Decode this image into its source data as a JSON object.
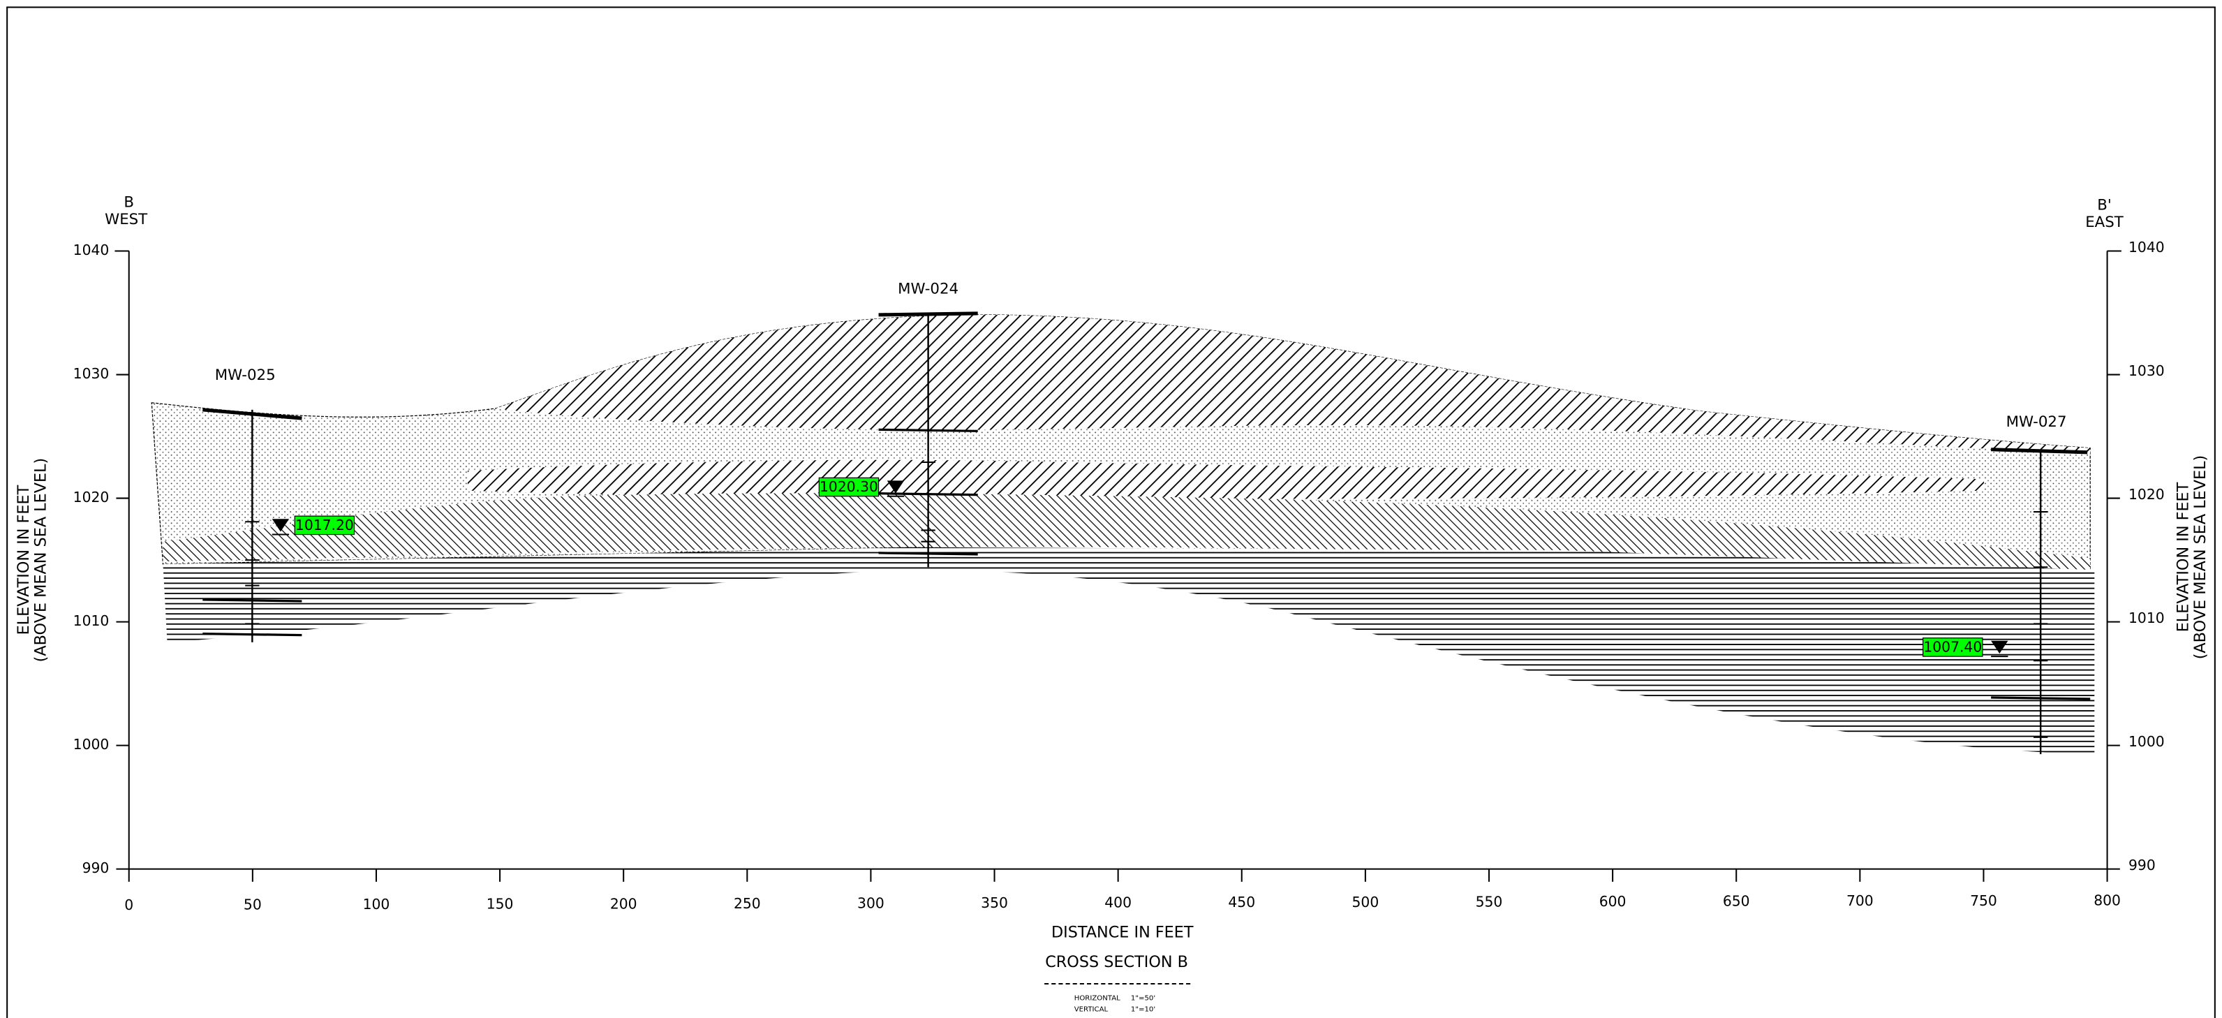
{
  "header": {
    "west": {
      "letter": "B",
      "direction": "WEST"
    },
    "east": {
      "letter": "B'",
      "direction": "EAST"
    }
  },
  "y_axis": {
    "title": "ELEVATION IN FEET",
    "subtitle": "(ABOVE MEAN SEA LEVEL)",
    "ticks": [
      "1040",
      "1030",
      "1020",
      "1010",
      "1000",
      "990"
    ]
  },
  "x_axis": {
    "title": "DISTANCE IN FEET",
    "ticks": [
      "0",
      "50",
      "100",
      "150",
      "200",
      "250",
      "300",
      "350",
      "400",
      "450",
      "500",
      "550",
      "600",
      "650",
      "700",
      "750",
      "800"
    ]
  },
  "footer": {
    "title": "CROSS SECTION B",
    "horizontal_label": "HORIZONTAL",
    "horizontal_scale": "1\"=50'",
    "vertical_label": "VERTICAL",
    "vertical_scale": "1\"=10'"
  },
  "wells": [
    {
      "name": "MW-025",
      "water_level": "1017.20"
    },
    {
      "name": "MW-024",
      "water_level": "1020.30"
    },
    {
      "name": "MW-027",
      "water_level": "1007.40"
    }
  ]
}
